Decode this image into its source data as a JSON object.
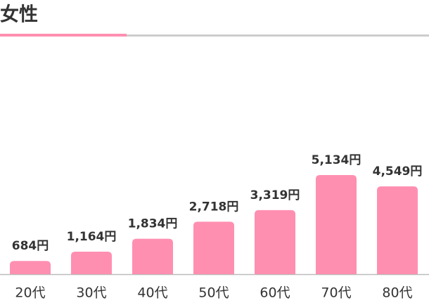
{
  "chart_data": {
    "type": "bar",
    "title": "女性",
    "categories": [
      "20代",
      "30代",
      "40代",
      "50代",
      "60代",
      "70代",
      "80代"
    ],
    "values": [
      684,
      1164,
      1834,
      2718,
      3319,
      5134,
      4549
    ],
    "value_labels": [
      "684円",
      "1,164円",
      "1,834円",
      "2,718円",
      "3,319円",
      "5,134円",
      "4,549円"
    ],
    "color": "#ff8fb1"
  }
}
